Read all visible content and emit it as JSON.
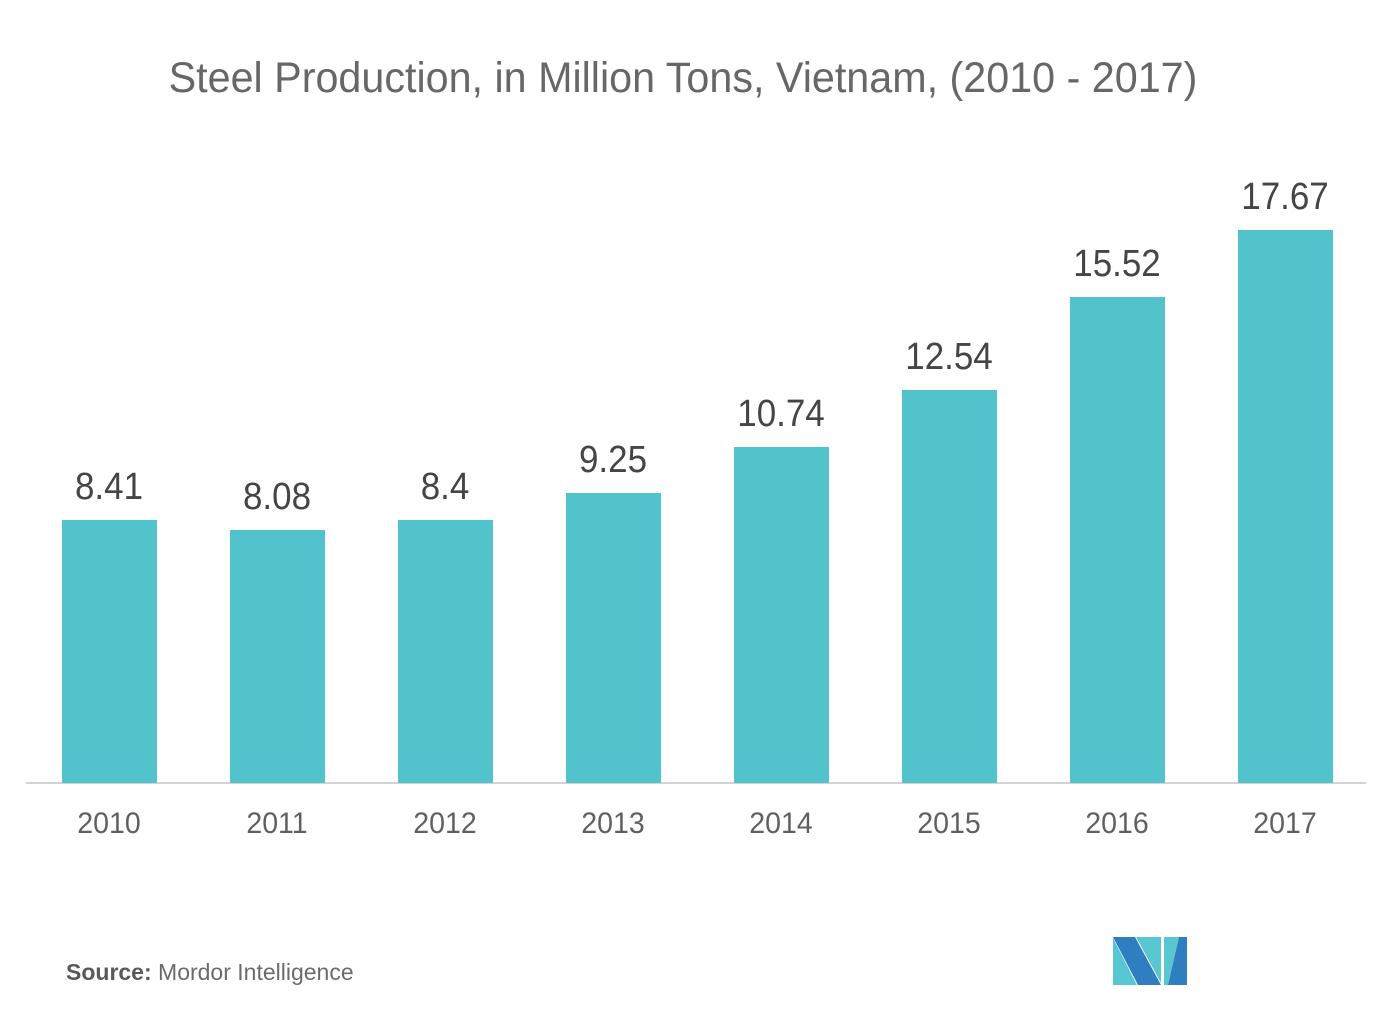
{
  "title": "Steel Production, in Million Tons, Vietnam, (2010 - 2017)",
  "chart_data": {
    "type": "bar",
    "title": "Steel Production, in Million Tons, Vietnam, (2010 - 2017)",
    "categories": [
      "2010",
      "2011",
      "2012",
      "2013",
      "2014",
      "2015",
      "2016",
      "2017"
    ],
    "values": [
      8.41,
      8.08,
      8.4,
      9.25,
      10.74,
      12.54,
      15.52,
      17.67
    ],
    "data_labels": [
      "8.41",
      "8.08",
      "8.4",
      "9.25",
      "10.74",
      "12.54",
      "15.52",
      "17.67"
    ],
    "xlabel": "",
    "ylabel": "",
    "ylim": [
      0,
      18
    ],
    "grid": false,
    "legend": null,
    "bar_color": "#52C3CC",
    "value_label_color": "#454545",
    "tick_label_color": "#606060",
    "axis_line_color": "#D3D3D3",
    "title_color": "#676767"
  },
  "source": {
    "label": "Source:",
    "text": " Mordor Intelligence"
  },
  "logo": {
    "name": "mordor-intelligence-logo",
    "blue": "#2E7EC0",
    "teal": "#59C7D2"
  }
}
